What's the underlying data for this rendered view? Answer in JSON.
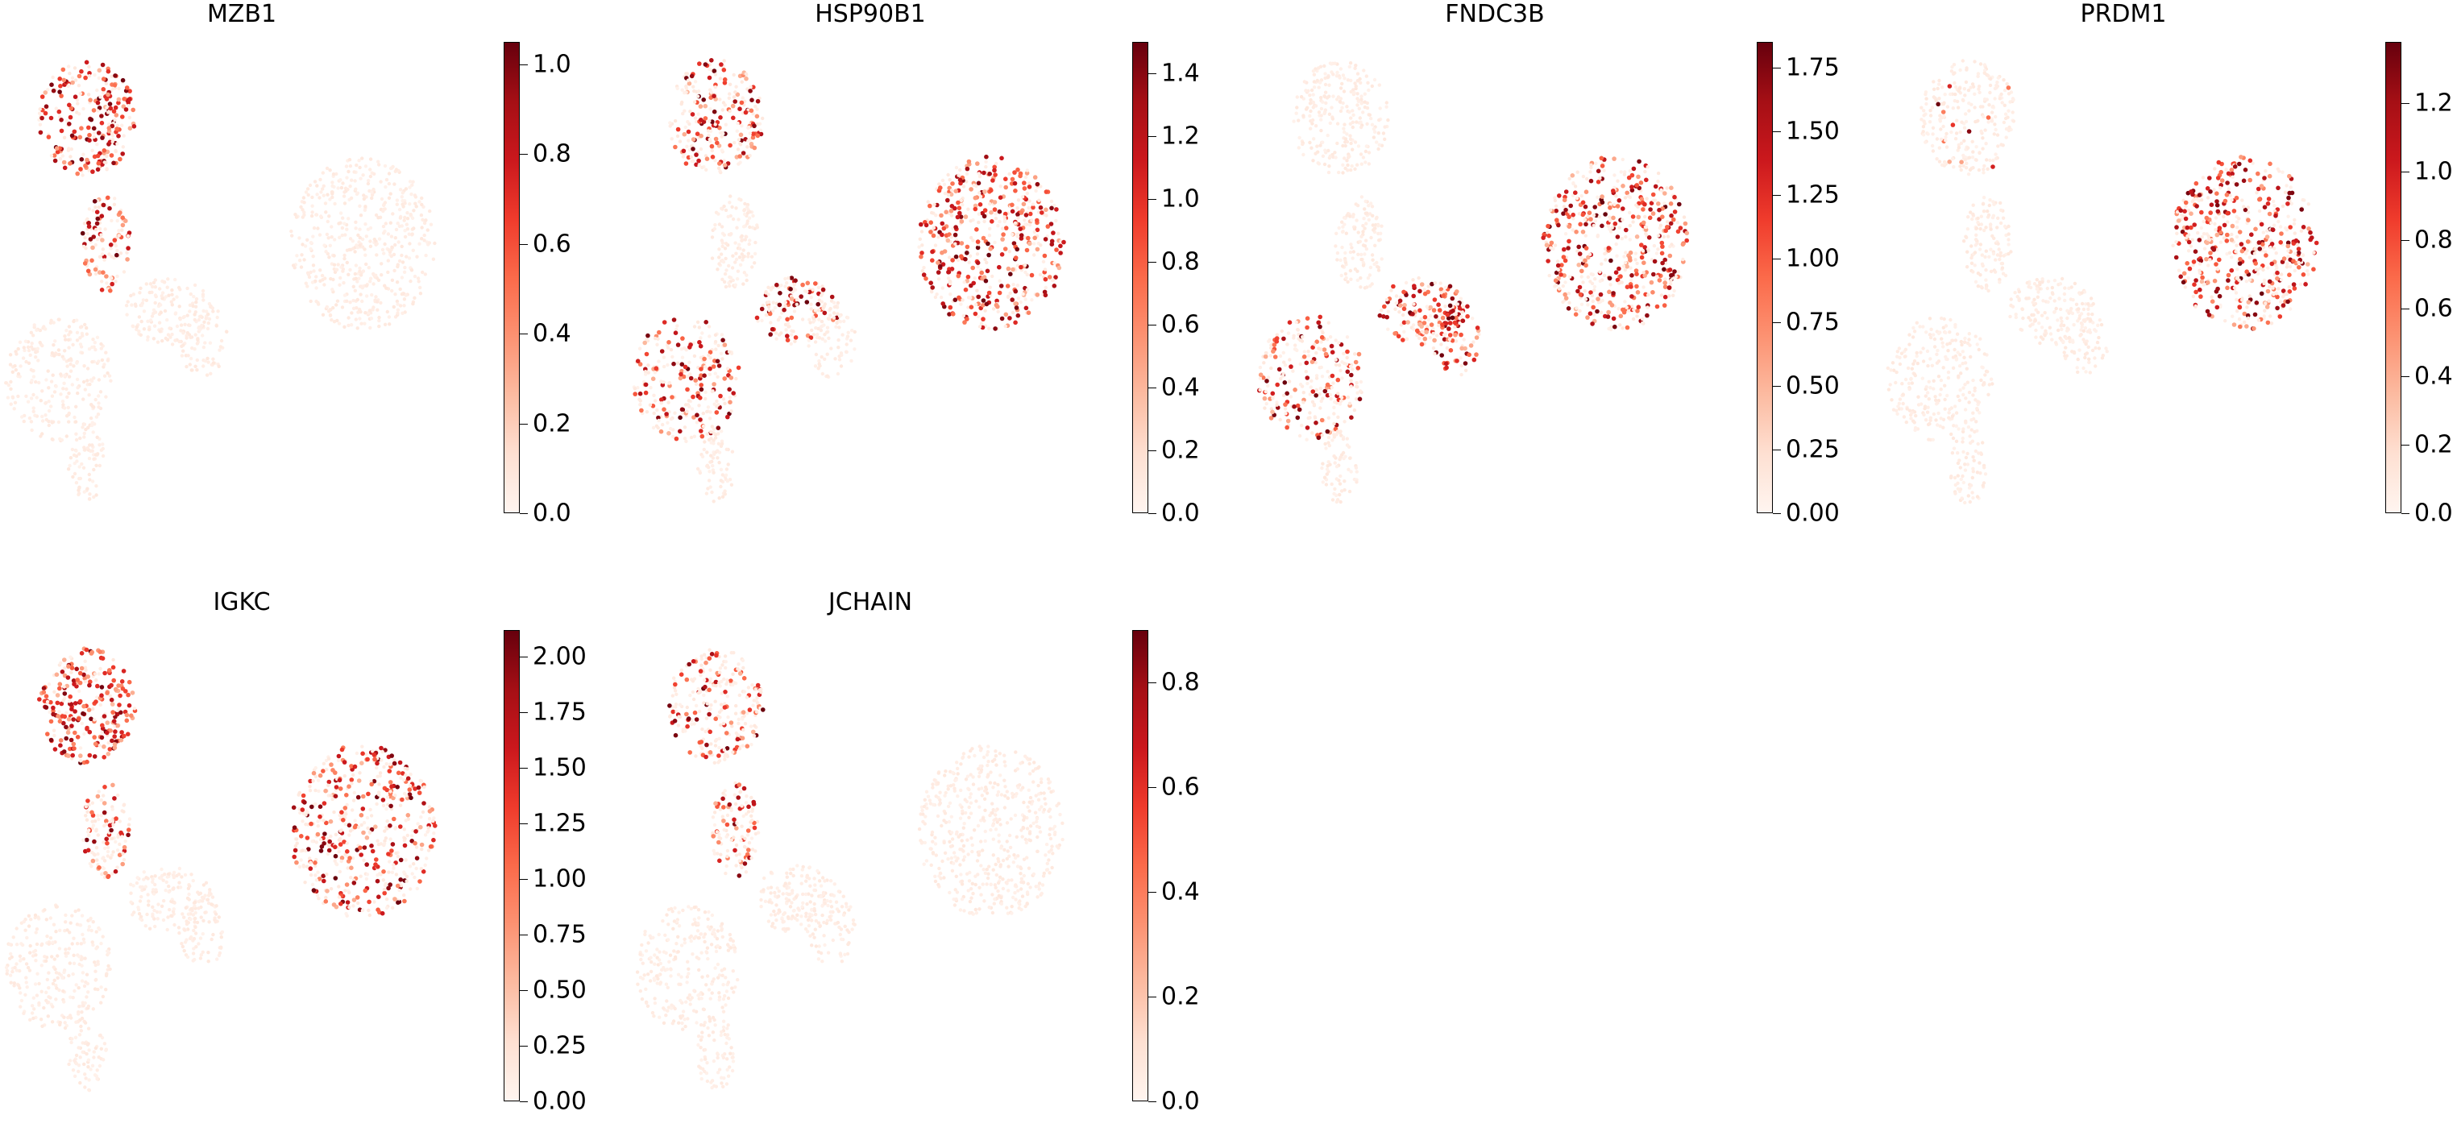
{
  "chart_data": [
    {
      "type": "scatter",
      "title": "MZB1",
      "colorbar": {
        "ticks": [
          "0.0",
          "0.2",
          "0.4",
          "0.6",
          "0.8",
          "1.0"
        ],
        "range": [
          0,
          1.05
        ]
      },
      "colormap": "Reds",
      "hotspots": [
        "upper-left cluster",
        "stem of left cluster"
      ]
    },
    {
      "type": "scatter",
      "title": "HSP90B1",
      "colorbar": {
        "ticks": [
          "0.0",
          "0.2",
          "0.4",
          "0.6",
          "0.8",
          "1.0",
          "1.2",
          "1.4"
        ],
        "range": [
          0,
          1.5
        ]
      },
      "colormap": "Reds",
      "hotspots": [
        "right cluster",
        "lower-left cluster",
        "upper-left cluster"
      ]
    },
    {
      "type": "scatter",
      "title": "FNDC3B",
      "colorbar": {
        "ticks": [
          "0.00",
          "0.25",
          "0.50",
          "0.75",
          "1.00",
          "1.25",
          "1.50",
          "1.75"
        ],
        "range": [
          0,
          1.85
        ]
      },
      "colormap": "Reds",
      "hotspots": [
        "right cluster top",
        "middle branch",
        "lower-left cluster"
      ]
    },
    {
      "type": "scatter",
      "title": "PRDM1",
      "colorbar": {
        "ticks": [
          "0.0",
          "0.2",
          "0.4",
          "0.6",
          "0.8",
          "1.0",
          "1.2"
        ],
        "range": [
          0,
          1.38
        ]
      },
      "colormap": "Reds",
      "hotspots": [
        "right cluster"
      ]
    },
    {
      "type": "scatter",
      "title": "IGKC",
      "colorbar": {
        "ticks": [
          "0.00",
          "0.25",
          "0.50",
          "0.75",
          "1.00",
          "1.25",
          "1.50",
          "1.75",
          "2.00"
        ],
        "range": [
          0,
          2.12
        ]
      },
      "colormap": "Reds",
      "hotspots": [
        "upper-left cluster",
        "right cluster"
      ]
    },
    {
      "type": "scatter",
      "title": "JCHAIN",
      "colorbar": {
        "ticks": [
          "0.0",
          "0.2",
          "0.4",
          "0.6",
          "0.8"
        ],
        "range": [
          0,
          0.9
        ]
      },
      "colormap": "Reds",
      "hotspots": [
        "upper-left cluster",
        "stem of left cluster"
      ]
    }
  ]
}
